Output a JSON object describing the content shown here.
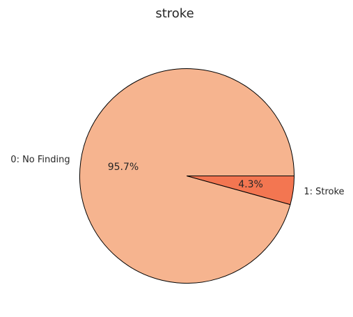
{
  "chart_data": {
    "type": "pie",
    "title": "stroke",
    "categories": [
      "0: No Finding",
      "1: Stroke"
    ],
    "values": [
      95.7,
      4.3
    ],
    "value_labels": [
      "95.7%",
      "4.3%"
    ],
    "colors": [
      "#f6b48f",
      "#f37651"
    ],
    "edge_color": "#000000",
    "start_angle": 0,
    "direction": "counterclockwise",
    "legend": "none"
  }
}
